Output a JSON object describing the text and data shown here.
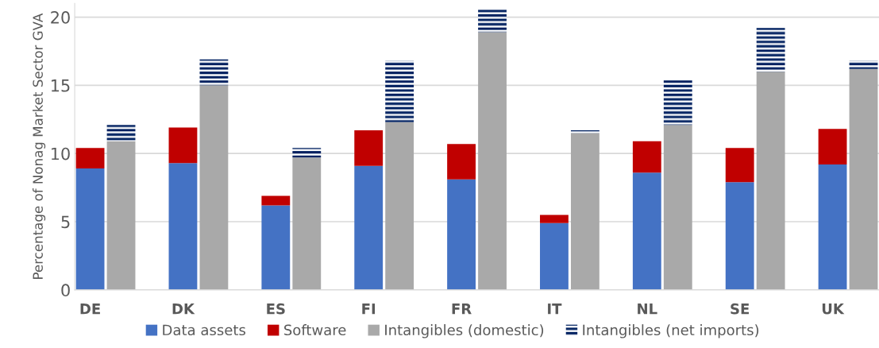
{
  "chart_data": {
    "type": "bar",
    "ylabel": "Percentage of Nonag Market Sector GVA",
    "categories": [
      "DE",
      null,
      null,
      "DK",
      null,
      null,
      "ES",
      null,
      null,
      "FI",
      null,
      null,
      "FR",
      null,
      null,
      "IT",
      null,
      null,
      "NL",
      null,
      null,
      "SE",
      null,
      null,
      "UK",
      null
    ],
    "stacked": true,
    "series": [
      {
        "name": "Data assets",
        "color": "#4472c4",
        "values": [
          8.9,
          null,
          null,
          9.3,
          null,
          null,
          6.2,
          null,
          null,
          9.1,
          null,
          null,
          8.1,
          null,
          null,
          4.9,
          null,
          null,
          8.6,
          null,
          null,
          7.9,
          null,
          null,
          9.2,
          null
        ]
      },
      {
        "name": "Software",
        "color": "#c00000",
        "values": [
          1.5,
          null,
          null,
          2.6,
          null,
          null,
          0.7,
          null,
          null,
          2.6,
          null,
          null,
          2.6,
          null,
          null,
          0.6,
          null,
          null,
          2.3,
          null,
          null,
          2.5,
          null,
          null,
          2.6,
          null
        ]
      },
      {
        "name": "Intangibles (domestic)",
        "color": "#a9a9a9",
        "values": [
          null,
          10.9,
          null,
          null,
          15.0,
          null,
          null,
          9.7,
          null,
          null,
          12.3,
          null,
          null,
          18.9,
          null,
          null,
          11.5,
          null,
          null,
          12.1,
          null,
          null,
          16.0,
          null,
          null,
          16.2
        ]
      },
      {
        "name": "Intangibles (net imports)",
        "color": "#002060",
        "line_style": "solid",
        "values": [
          null,
          1.2,
          null,
          null,
          1.9,
          null,
          null,
          0.7,
          null,
          null,
          4.5,
          null,
          null,
          1.7,
          null,
          null,
          0.2,
          null,
          null,
          3.3,
          null,
          null,
          3.2,
          null,
          null,
          0.6
        ]
      }
    ],
    "ylim": [
      0,
      21
    ],
    "yticks": [
      0,
      5,
      10,
      15,
      20
    ],
    "grid": "y",
    "legend": "bottom"
  }
}
